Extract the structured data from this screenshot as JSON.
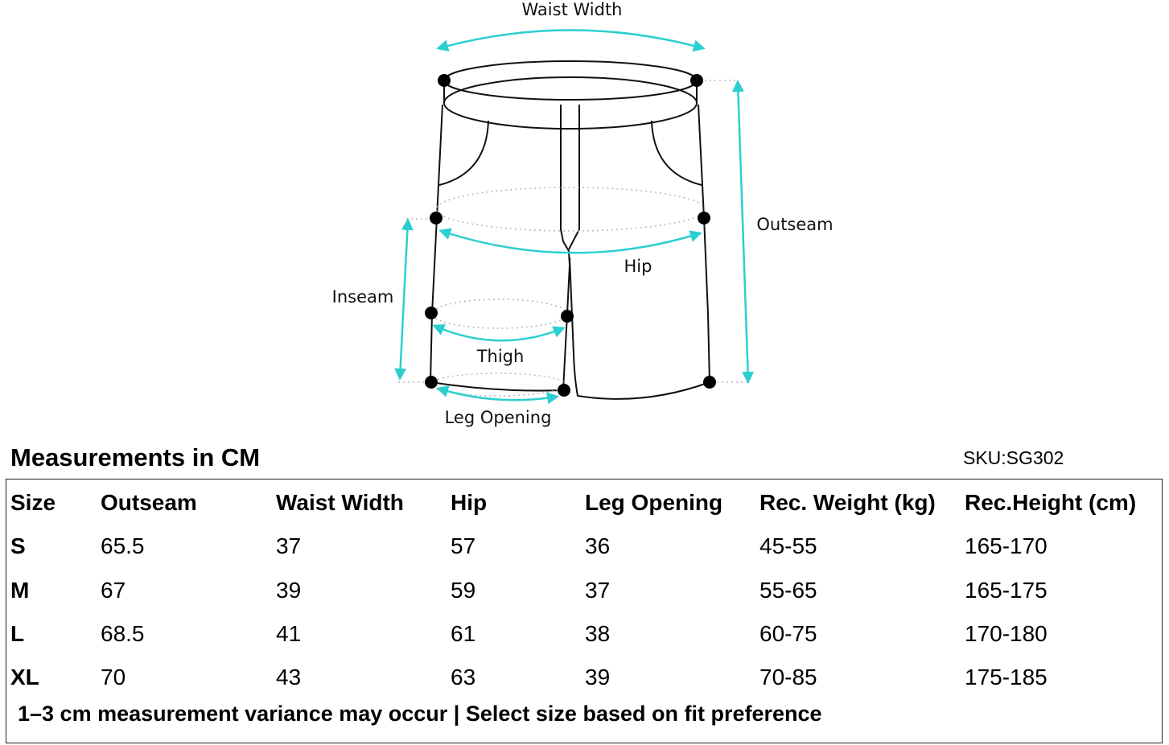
{
  "diagram": {
    "labels": {
      "waist_width": "Waist Width",
      "outseam": "Outseam",
      "hip": "Hip",
      "inseam": "Inseam",
      "thigh": "Thigh",
      "leg_opening": "Leg Opening"
    }
  },
  "title": "Measurements in CM",
  "sku": "SKU:SG302",
  "table": {
    "header": [
      "Size",
      "Outseam",
      "Waist Width",
      "Hip",
      "Leg Opening",
      "Rec. Weight (kg)",
      "Rec.Height (cm)"
    ],
    "rows": [
      [
        "S",
        65.5,
        37,
        57,
        36,
        "45-55",
        "165-170"
      ],
      [
        "M",
        67,
        39,
        59,
        37,
        "55-65",
        "165-175"
      ],
      [
        "L",
        68.5,
        41,
        61,
        38,
        "60-75",
        "170-180"
      ],
      [
        "XL",
        70,
        43,
        63,
        39,
        "70-85",
        "175-185"
      ]
    ]
  },
  "note": "1–3 cm measurement variance may occur | Select size based on fit preference"
}
